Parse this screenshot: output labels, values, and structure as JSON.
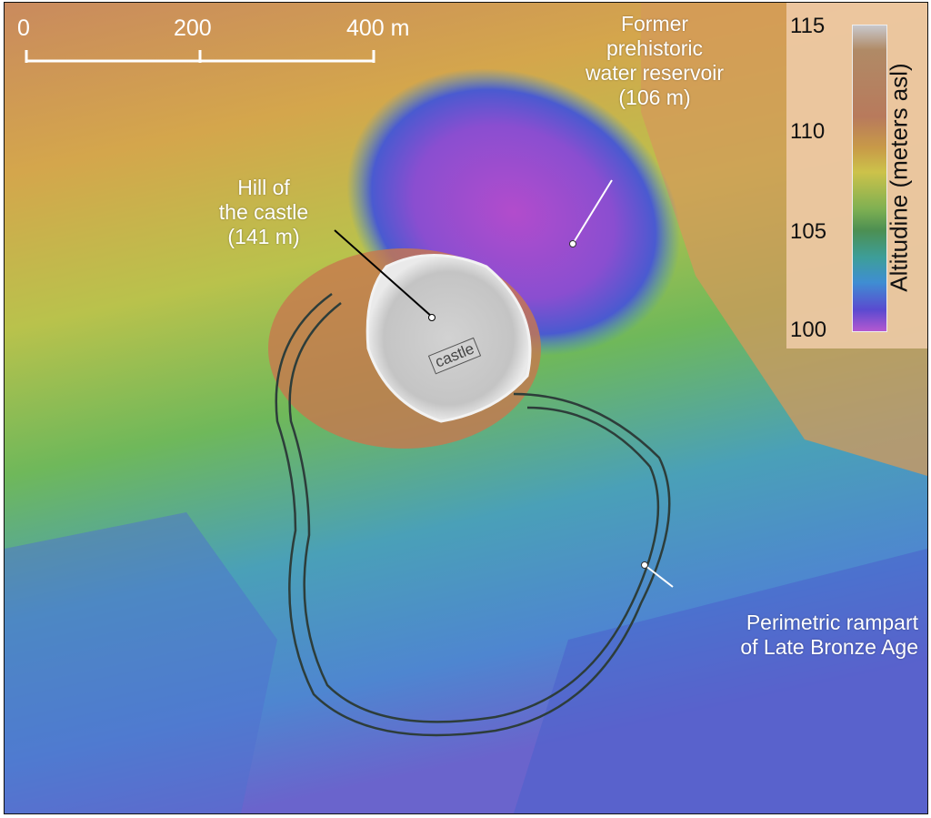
{
  "scale_bar": {
    "labels": [
      "0",
      "200",
      "400 m"
    ]
  },
  "legend": {
    "title": "Altitudine (meters asl)",
    "ticks": [
      "115",
      "110",
      "105",
      "100"
    ],
    "range": [
      100,
      115
    ],
    "colors": [
      "#c8c8cc",
      "#b87a5c",
      "#ccc24a",
      "#4c8f52",
      "#3f8ed2",
      "#5a4ad0",
      "#b458d0"
    ]
  },
  "annotations": {
    "reservoir": {
      "line1": "Former",
      "line2": "prehistoric",
      "line3": "water reservoir",
      "line4": "(106 m)"
    },
    "hill": {
      "line1": "Hill of",
      "line2": "the castle",
      "line3": "(141 m)"
    },
    "castle_tag": "castle",
    "rampart": {
      "line1": "Perimetric rampart",
      "line2": "of Late Bronze Age"
    }
  }
}
